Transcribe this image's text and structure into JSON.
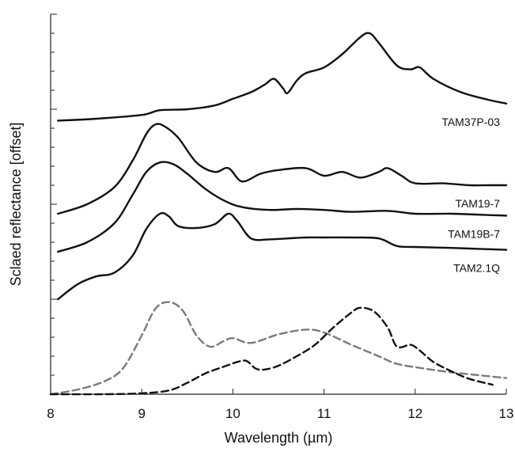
{
  "chart_data": {
    "type": "line",
    "title": "",
    "xlabel": "Wavelength (µm)",
    "ylabel": "Sclaed reflectance [offset]",
    "xlim": [
      8,
      13
    ],
    "ylim": [
      0,
      20
    ],
    "x_ticks": [
      "8",
      "9",
      "10",
      "11",
      "12",
      "13"
    ],
    "grid": false,
    "legend": "none",
    "y_tick_count": 21,
    "series": [
      {
        "name": "TAM37P-03",
        "color": "#111111",
        "dash": "solid",
        "x": [
          8.08,
          8.5,
          9.0,
          9.2,
          9.5,
          9.8,
          10.0,
          10.2,
          10.35,
          10.45,
          10.55,
          10.6,
          10.7,
          10.8,
          11.0,
          11.2,
          11.4,
          11.5,
          11.6,
          11.8,
          11.95,
          12.05,
          12.2,
          12.5,
          12.8,
          13.0
        ],
        "y": [
          14.4,
          14.5,
          14.7,
          14.95,
          15.0,
          15.2,
          15.55,
          15.9,
          16.3,
          16.6,
          16.1,
          15.85,
          16.5,
          16.9,
          17.2,
          17.9,
          18.8,
          19.0,
          18.5,
          17.3,
          17.1,
          17.2,
          16.6,
          15.9,
          15.5,
          15.3
        ]
      },
      {
        "name": "TAM19-7",
        "color": "#111111",
        "dash": "solid",
        "x": [
          8.08,
          8.4,
          8.7,
          8.9,
          9.05,
          9.15,
          9.25,
          9.4,
          9.6,
          9.8,
          9.95,
          10.1,
          10.3,
          10.5,
          10.8,
          11.0,
          11.2,
          11.4,
          11.6,
          11.7,
          11.85,
          12.0,
          12.3,
          12.6,
          12.8,
          13.0
        ],
        "y": [
          9.5,
          10.0,
          10.9,
          12.3,
          13.7,
          14.2,
          14.1,
          13.5,
          12.2,
          11.7,
          11.9,
          11.2,
          11.6,
          11.8,
          11.9,
          11.5,
          11.7,
          11.4,
          11.7,
          11.9,
          11.5,
          11.1,
          11.1,
          11.0,
          11.0,
          11.0
        ]
      },
      {
        "name": "TAM19B-7",
        "color": "#111111",
        "dash": "solid",
        "x": [
          8.08,
          8.4,
          8.7,
          8.9,
          9.05,
          9.2,
          9.35,
          9.5,
          9.7,
          9.9,
          10.1,
          10.4,
          10.7,
          11.0,
          11.3,
          11.7,
          12.0,
          12.4,
          12.7,
          13.0
        ],
        "y": [
          7.5,
          8.0,
          9.0,
          10.5,
          11.7,
          12.2,
          12.1,
          11.6,
          10.8,
          10.2,
          9.85,
          9.7,
          9.75,
          9.7,
          9.6,
          9.65,
          9.5,
          9.5,
          9.45,
          9.4
        ]
      },
      {
        "name": "TAM2.1Q",
        "color": "#111111",
        "dash": "solid",
        "x": [
          8.08,
          8.3,
          8.5,
          8.7,
          8.9,
          9.05,
          9.2,
          9.3,
          9.4,
          9.6,
          9.8,
          9.95,
          10.05,
          10.2,
          10.4,
          10.6,
          10.8,
          11.0,
          11.3,
          11.6,
          11.8,
          12.0,
          12.4,
          12.7,
          13.0
        ],
        "y": [
          5.0,
          5.8,
          6.2,
          6.4,
          7.3,
          8.7,
          9.5,
          9.35,
          8.85,
          8.75,
          8.95,
          9.5,
          9.1,
          8.2,
          8.15,
          8.2,
          8.25,
          8.25,
          8.25,
          8.2,
          7.8,
          7.75,
          7.7,
          7.65,
          7.6
        ]
      },
      {
        "name": "",
        "color": "#7a7a7a",
        "dash": "dashed",
        "x": [
          8.0,
          8.3,
          8.6,
          8.8,
          9.0,
          9.15,
          9.3,
          9.45,
          9.6,
          9.75,
          9.9,
          10.0,
          10.2,
          10.5,
          10.8,
          11.0,
          11.3,
          11.6,
          11.8,
          12.1,
          12.4,
          12.7,
          13.0
        ],
        "y": [
          0.0,
          0.25,
          0.7,
          1.4,
          3.1,
          4.5,
          4.85,
          4.4,
          3.1,
          2.5,
          2.8,
          2.95,
          2.7,
          3.15,
          3.4,
          3.25,
          2.6,
          2.0,
          1.6,
          1.35,
          1.15,
          1.0,
          0.85
        ]
      },
      {
        "name": "",
        "color": "#111111",
        "dash": "dashed",
        "x": [
          8.0,
          8.6,
          9.0,
          9.3,
          9.5,
          9.7,
          9.9,
          10.05,
          10.15,
          10.25,
          10.35,
          10.5,
          10.7,
          10.9,
          11.1,
          11.3,
          11.4,
          11.55,
          11.7,
          11.8,
          11.95,
          12.05,
          12.2,
          12.4,
          12.6,
          12.85
        ],
        "y": [
          0.0,
          0.0,
          0.05,
          0.2,
          0.6,
          1.1,
          1.45,
          1.7,
          1.75,
          1.35,
          1.3,
          1.5,
          2.0,
          2.6,
          3.5,
          4.3,
          4.55,
          4.35,
          3.5,
          2.5,
          2.6,
          2.3,
          1.7,
          1.2,
          0.8,
          0.5
        ]
      }
    ]
  }
}
